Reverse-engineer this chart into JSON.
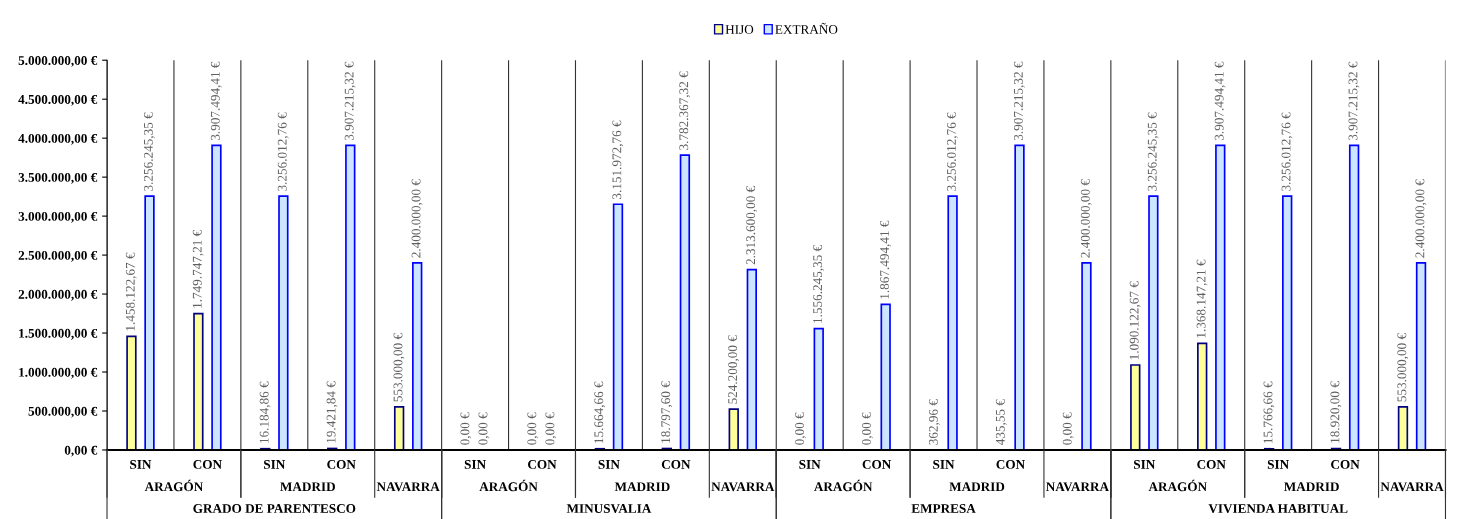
{
  "chart_data": {
    "type": "bar",
    "categories": [
      "SIN",
      "CON",
      "SIN",
      "CON",
      null,
      "SIN",
      "CON",
      "SIN",
      "CON",
      null,
      "SIN",
      "CON",
      "SIN",
      "CON",
      null,
      "SIN",
      "CON",
      "SIN",
      "CON",
      null
    ],
    "annotations": [
      "ARAGÓN",
      "MADRID",
      "NAVARRA",
      "ARAGÓN",
      "MADRID",
      "NAVARRA",
      "ARAGÓN",
      "MADRID",
      "NAVARRA",
      "ARAGÓN",
      "MADRID",
      "NAVARRA",
      "GRADO DE PARENTESCO",
      "MINUSVALIA",
      "EMPRESA",
      "VIVIENDA HABITUAL"
    ],
    "series": [
      {
        "name": "HIJO",
        "color": "#ffff99",
        "values": [
          1458122.67,
          1749747.21,
          16184.86,
          19421.84,
          553000,
          0,
          0,
          15664.66,
          18797.6,
          524200,
          0,
          0,
          362.96,
          435.55,
          0,
          1090122.67,
          1368147.21,
          15766.66,
          18920.0,
          553000
        ],
        "value_labels": [
          "1.458.122,67 €",
          "1.749.747,21 €",
          "16.184,86 €",
          "19.421,84 €",
          "553.000,00 €",
          "0,00 €",
          "0,00 €",
          "15.664,66 €",
          "18.797,60 €",
          "524.200,00 €",
          "0,00 €",
          "0,00 €",
          "362,96 €",
          "435,55 €",
          "0,00 €",
          "1.090.122,67 €",
          "1.368.147,21 €",
          "15.766,66 €",
          "18.920,00 €",
          "553.000,00 €"
        ]
      },
      {
        "name": "EXTRAÑO",
        "color": "#cce6ff",
        "values": [
          3256245.35,
          3907494.41,
          3256012.76,
          3907215.32,
          2400000,
          0,
          0,
          3151972.76,
          3782367.32,
          2313600,
          1556245.35,
          1867494.41,
          3256012.76,
          3907215.32,
          2400000,
          3256245.35,
          3907494.41,
          3256012.76,
          3907215.32,
          2400000
        ],
        "value_labels": [
          "3.256.245,35 €",
          "3.907.494,41 €",
          "3.256.012,76 €",
          "3.907.215,32 €",
          "2.400.000,00 €",
          "0,00 €",
          "0,00 €",
          "3.151.972,76 €",
          "3.782.367,32 €",
          "2.313.600,00 €",
          "1.556.245,35 €",
          "1.867.494,41 €",
          "3.256.012,76 €",
          "3.907.215,32 €",
          "2.400.000,00 €",
          "3.256.245,35 €",
          "3.907.494,41 €",
          "3.256.012,76 €",
          "3.907.215,32 €",
          "2.400.000,00 €"
        ]
      }
    ],
    "ylim": [
      0,
      5000000
    ],
    "yticks": [
      {
        "value": 0,
        "label": "0,00 €"
      },
      {
        "value": 500000,
        "label": "500.000,00 €"
      },
      {
        "value": 1000000,
        "label": "1.000.000,00 €"
      },
      {
        "value": 1500000,
        "label": "1.500.000,00 €"
      },
      {
        "value": 2000000,
        "label": "2.000.000,00 €"
      },
      {
        "value": 2500000,
        "label": "2.500.000,00 €"
      },
      {
        "value": 3000000,
        "label": "3.000.000,00 €"
      },
      {
        "value": 3500000,
        "label": "3.500.000,00 €"
      },
      {
        "value": 4000000,
        "label": "4.000.000,00 €"
      },
      {
        "value": 4500000,
        "label": "4.500.000,00 €"
      },
      {
        "value": 5000000,
        "label": "5.000.000,00 €"
      }
    ],
    "grid": false,
    "legend": "top"
  }
}
